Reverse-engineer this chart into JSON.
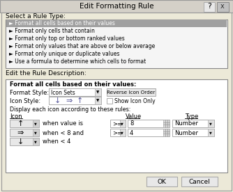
{
  "title": "Edit Formatting Rule",
  "bg_color": "#d4d0c8",
  "dialog_bg": "#ece9d8",
  "section1_label": "Select a Rule Type:",
  "rule_types": [
    "Format all cells based on their values",
    "Format only cells that contain",
    "Format only top or bottom ranked values",
    "Format only values that are above or below average",
    "Format only unique or duplicate values",
    "Use a formula to determine which cells to format"
  ],
  "selected_rule_index": 0,
  "section2_label": "Edit the Rule Description:",
  "desc_bold": "Format all cells based on their values:",
  "format_style_label": "Format Style:",
  "format_style_value": "Icon Sets",
  "reverse_btn": "Reverse Icon Order",
  "icon_style_label": "Icon Style:",
  "show_icon_only_label": "Show Icon Only",
  "display_label": "Display each icon according to these rules:",
  "col_icon": "Icon",
  "col_value": "Value",
  "col_type": "Type",
  "rows": [
    {
      "when_text": "when value is",
      "op": ">=",
      "value": "8",
      "type": "Number"
    },
    {
      "when_text": "when < 8 and",
      "op": ">=",
      "value": "4",
      "type": "Number"
    },
    {
      "when_text": "when < 4",
      "op": null,
      "value": null,
      "type": null
    }
  ],
  "ok_btn": "OK",
  "cancel_btn": "Cancel",
  "help_symbol": "?",
  "close_symbol": "x",
  "selected_highlight": "#a0a0a0",
  "selected_text_color": "white",
  "title_bar_color": "#d4d0c8",
  "close_btn_color": "#d4d0c8",
  "listbox_bg": "#f5f5f5",
  "desc_box_bg": "#ffffff"
}
